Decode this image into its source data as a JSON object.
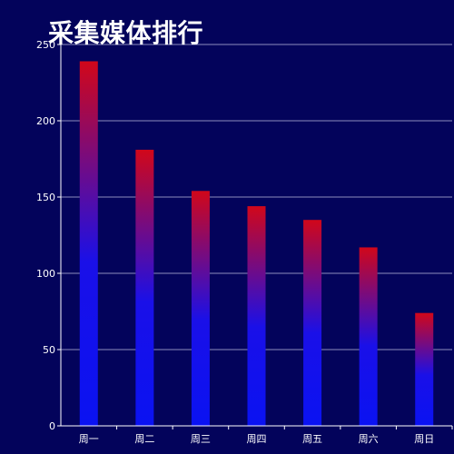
{
  "chart_data": {
    "type": "bar",
    "title": "采集媒体排行",
    "categories": [
      "周一",
      "周二",
      "周三",
      "周四",
      "周五",
      "周六",
      "周日"
    ],
    "values": [
      239,
      181,
      154,
      144,
      135,
      117,
      74
    ],
    "ylim": [
      0,
      250
    ],
    "y_ticks": [
      0,
      50,
      100,
      150,
      200,
      250
    ],
    "grid": true,
    "legend": "none",
    "colors": {
      "background": "#03035b",
      "bar_top": "#d1071a",
      "bar_bottom": "#0a12f2",
      "grid": "#8c8cbd",
      "axis": "#ffffff",
      "text": "#ffffff"
    }
  }
}
